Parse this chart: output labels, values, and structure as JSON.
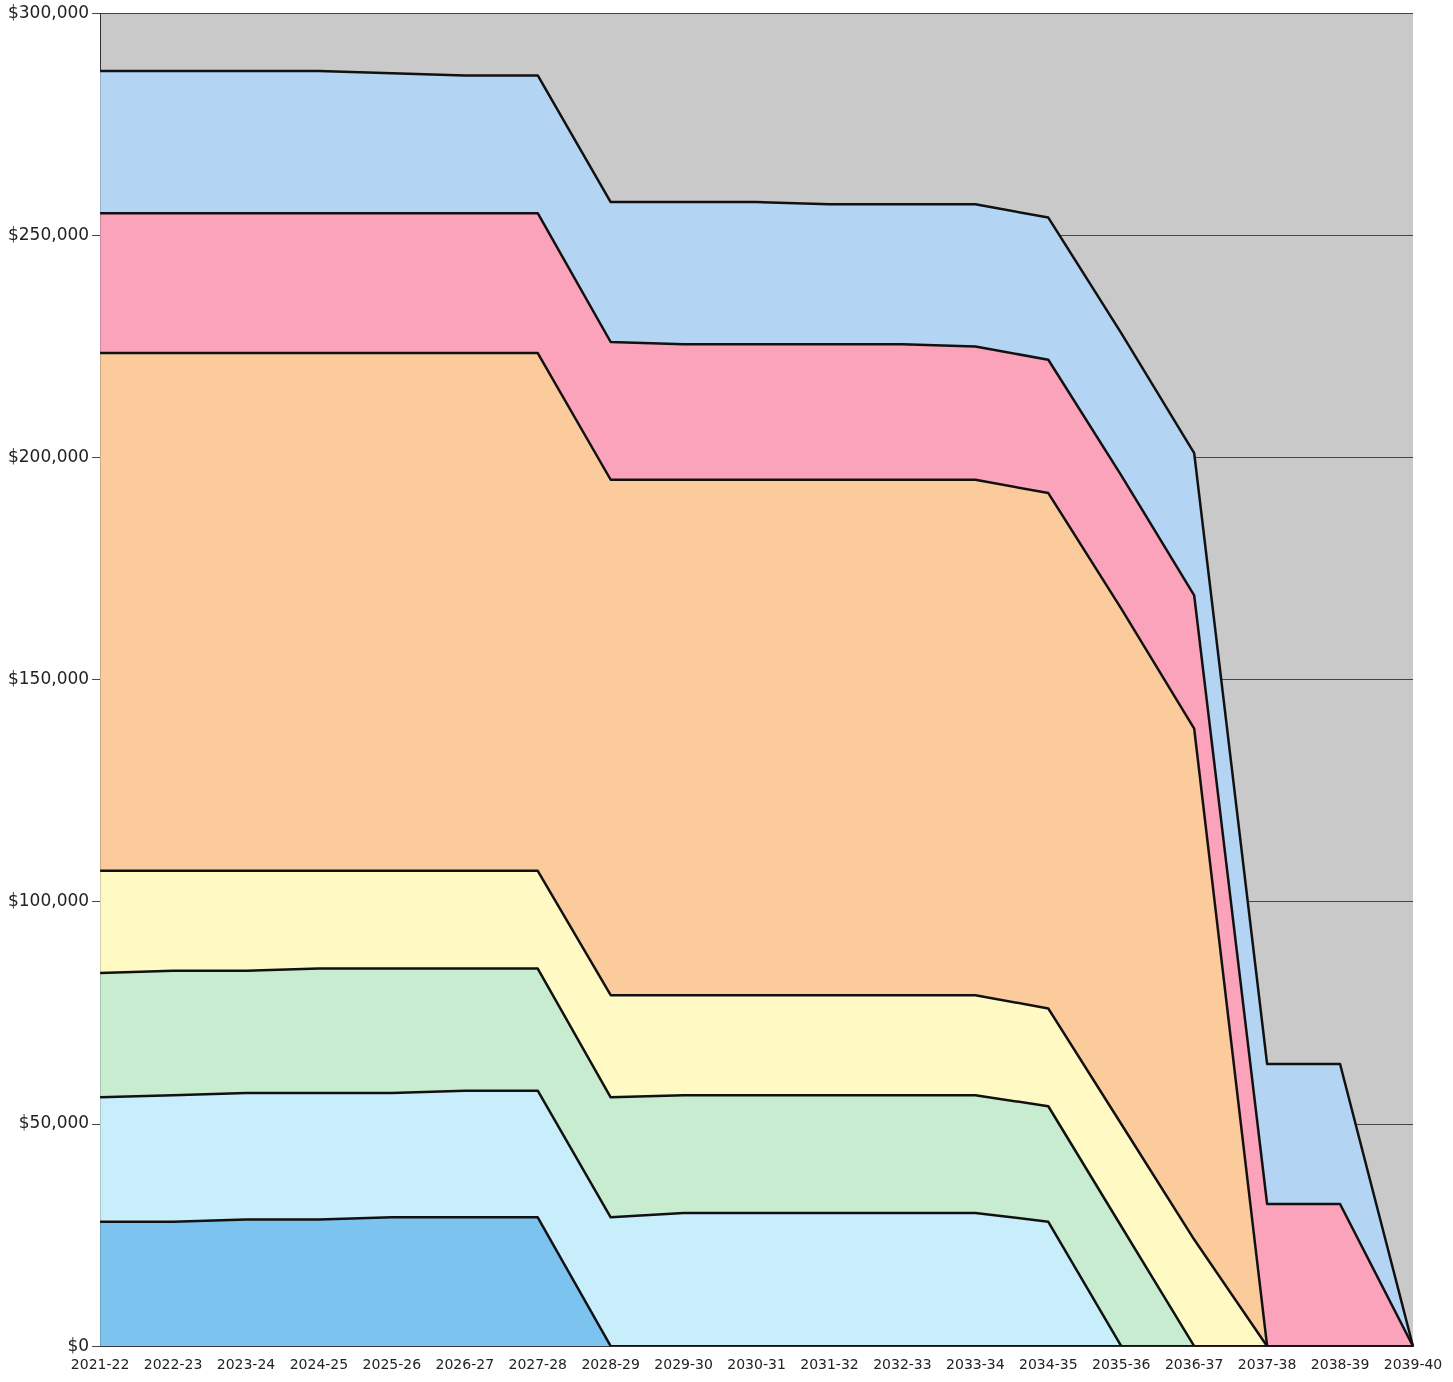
{
  "chart_data": {
    "type": "area",
    "stacked": true,
    "categories": [
      "2021-22",
      "2022-23",
      "2023-24",
      "2024-25",
      "2025-26",
      "2026-27",
      "2027-28",
      "2028-29",
      "2029-30",
      "2030-31",
      "2031-32",
      "2032-33",
      "2033-34",
      "2034-35",
      "2035-36",
      "2036-37",
      "2037-38",
      "2038-39",
      "2039-40"
    ],
    "series": [
      {
        "color": "#7cc3f0",
        "values": [
          28000,
          28000,
          28500,
          28500,
          29000,
          29000,
          29000,
          0,
          0,
          0,
          0,
          0,
          0,
          0,
          0,
          0,
          0,
          0,
          0
        ]
      },
      {
        "color": "#c8eefb",
        "values": [
          28000,
          28500,
          28500,
          28500,
          28000,
          28500,
          28500,
          29000,
          30000,
          30000,
          30000,
          30000,
          30000,
          28000,
          0,
          0,
          0,
          0,
          0
        ]
      },
      {
        "color": "#c8ecd0",
        "values": [
          28000,
          28000,
          27500,
          28000,
          28000,
          27500,
          27500,
          27000,
          26500,
          26500,
          26500,
          26500,
          26500,
          26000,
          27000,
          0,
          0,
          0,
          0
        ]
      },
      {
        "color": "#fff9c4",
        "values": [
          23000,
          22500,
          22500,
          22000,
          22000,
          22000,
          22000,
          23000,
          22500,
          22500,
          22500,
          22500,
          22500,
          22000,
          23000,
          24000,
          0,
          0,
          0
        ]
      },
      {
        "color": "#fbcb9c",
        "values": [
          116500,
          116500,
          116500,
          116500,
          116500,
          116500,
          116500,
          116000,
          116000,
          116000,
          116000,
          116000,
          116000,
          116000,
          116000,
          115000,
          0,
          0,
          0
        ]
      },
      {
        "color": "#fba3bb",
        "values": [
          31500,
          31500,
          31500,
          31500,
          31500,
          31500,
          31500,
          31000,
          30500,
          30500,
          30500,
          30500,
          30000,
          30000,
          30000,
          30000,
          32000,
          32000,
          0
        ]
      },
      {
        "color": "#b4d4f4",
        "values": [
          32000,
          32000,
          32000,
          32000,
          31500,
          31000,
          31000,
          31500,
          32000,
          32000,
          31500,
          31500,
          32000,
          32000,
          32000,
          32000,
          31500,
          31500,
          0
        ]
      }
    ],
    "ylim": [
      0,
      300000
    ],
    "yticks": [
      {
        "value": 0,
        "label": "$0"
      },
      {
        "value": 50000,
        "label": "$50,000"
      },
      {
        "value": 100000,
        "label": "$100,000"
      },
      {
        "value": 150000,
        "label": "$150,000"
      },
      {
        "value": 200000,
        "label": "$200,000"
      },
      {
        "value": 250000,
        "label": "$250,000"
      },
      {
        "value": 300000,
        "label": "$300,000"
      }
    ],
    "grid": "y",
    "legend": false
  }
}
